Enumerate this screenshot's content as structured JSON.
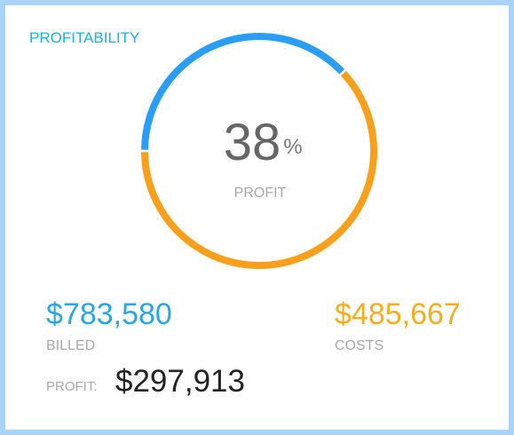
{
  "widget": {
    "title": "PROFITABILITY",
    "gauge": {
      "type": "donut",
      "values": [
        38,
        62
      ],
      "colors": [
        "#2a9df4",
        "#f8a01c"
      ],
      "unit": "%",
      "caption": "PROFIT"
    },
    "billed": {
      "value": "$783,580",
      "label": "BILLED"
    },
    "costs": {
      "value": "$485,667",
      "label": "COSTS"
    },
    "profit": {
      "label": "PROFIT:",
      "value": "$297,913"
    }
  }
}
